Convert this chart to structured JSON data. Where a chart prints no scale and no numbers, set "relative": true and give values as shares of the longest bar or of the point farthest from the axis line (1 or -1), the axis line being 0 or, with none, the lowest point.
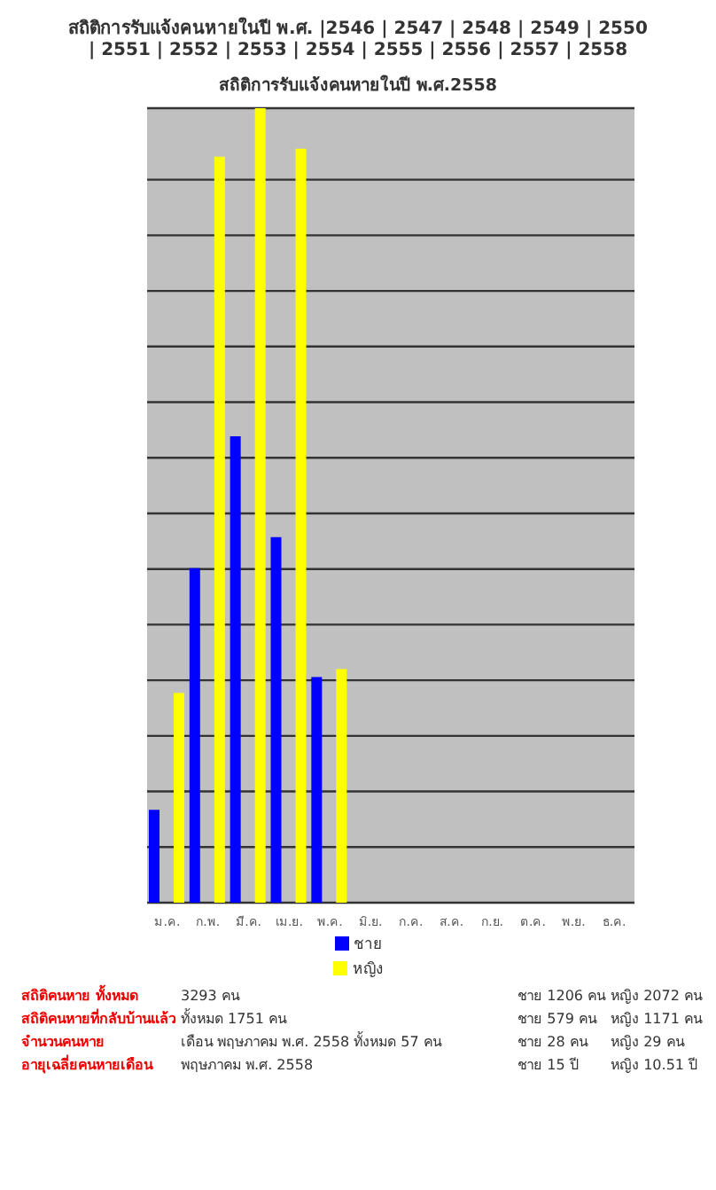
{
  "chart_data": {
    "type": "bar",
    "title": "สถิติการรับแจ้งคนหายในปี พ.ศ. |2546 | 2547 | 2548 | 2549 | 2550 | 2551 | 2552 | 2553 | 2554 | 2555 | 2556 | 2557 | 2558",
    "subtitle": "สถิติการรับแจ้งคนหายในปี พ.ศ.2558",
    "categories": [
      "ม.ค.",
      "ก.พ.",
      "มี.ค.",
      "เม.ย.",
      "พ.ค.",
      "มิ.ย.",
      "ก.ค.",
      "ส.ค.",
      "ก.ย.",
      "ต.ค.",
      "พ.ย.",
      "ธ.ค."
    ],
    "relative": true,
    "grid": "y",
    "legend": "bottom",
    "series": [
      {
        "name": "ชาย",
        "color": "#0000ff",
        "values": [
          0.117,
          0.421,
          0.587,
          0.46,
          0.284,
          null,
          null,
          null,
          null,
          null,
          null,
          null
        ]
      },
      {
        "name": "หญิง",
        "color": "#ffff00",
        "values": [
          0.264,
          0.939,
          1,
          0.949,
          0.294,
          null,
          null,
          null,
          null,
          null,
          null,
          null
        ]
      }
    ],
    "annotations": [
      "สถิติคนหาย ทั้งหมด",
      "3293 คน",
      "ชาย 1206 คน",
      "หญิง 2072 คน",
      "สถิติคนหายที่กลับบ้านแล้ว",
      "ทั้งหมด 1751 คน",
      "ชาย 579 คน",
      "หญิง 1171 คน",
      "จำนวนคนหาย",
      "เดือน พฤษภาคม พ.ศ. 2558 ทั้งหมด 57 คน",
      "ชาย 28 คน",
      "หญิง 29 คน",
      "อายุเฉลี่ยคนหายเดือน",
      "พฤษภาคม พ.ศ. 2558",
      "ชาย 15 ปี",
      "หญิง 10.51 ปี"
    ]
  }
}
